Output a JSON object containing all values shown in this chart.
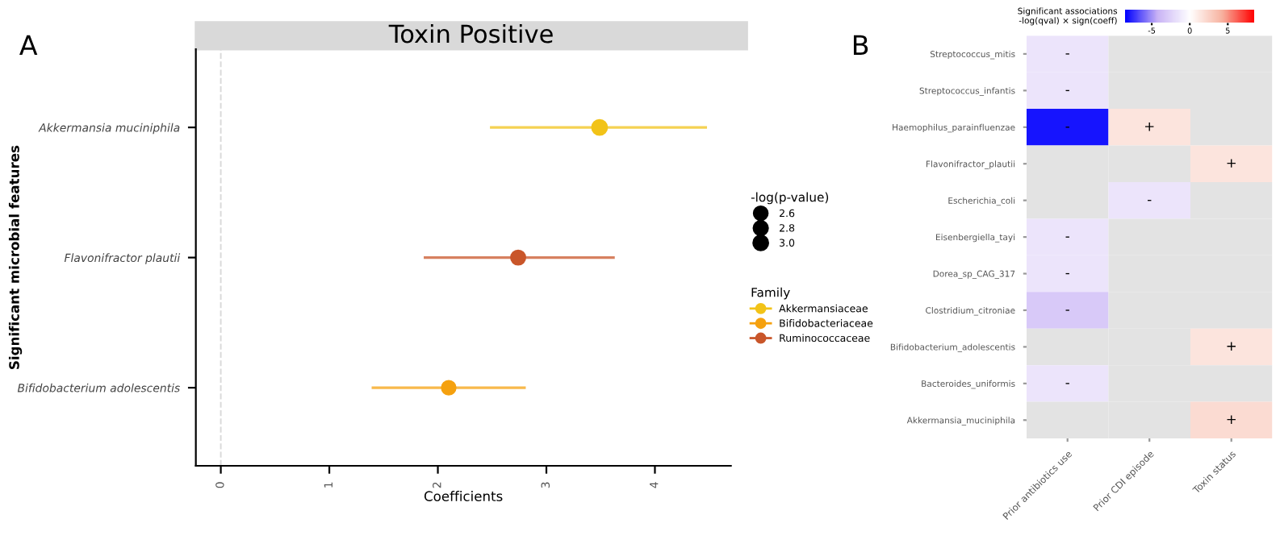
{
  "chart_data": [
    {
      "type": "scatter",
      "orientation": "horizontal",
      "title": "Toxin Positive",
      "xlabel": "Coefficients",
      "ylabel": "Significant microbial features",
      "annotations": [
        "A"
      ],
      "categories": [
        "Akkermansia muciniphila",
        "Flavonifractor plautii",
        "Bifidobacterium adolescentis"
      ],
      "xlim": [
        -0.23,
        4.7
      ],
      "xticks": [
        0,
        1,
        2,
        3,
        4
      ],
      "marker": "circle",
      "grid": false,
      "legend": "right",
      "legend_title": [
        "-log(p-value)",
        "Family"
      ],
      "size_legend": [
        {
          "value": 2.6,
          "label": "2.6"
        },
        {
          "value": 2.8,
          "label": "2.8"
        },
        {
          "value": 3.0,
          "label": "3.0"
        }
      ],
      "ref_lines": [
        {
          "axis": "x",
          "value": 0,
          "color": "#d9d9d9",
          "line_style": "dashed"
        }
      ],
      "series": [
        {
          "name": "Akkermansiaceae",
          "color": "#f2c318",
          "values": [
            3.49,
            null,
            null
          ],
          "errors": [
            [
              2.48,
              4.48
            ],
            null,
            null
          ],
          "sizes": [
            3.05,
            null,
            null
          ]
        },
        {
          "name": "Bifidobacteriaceae",
          "color": "#f5a10f",
          "values": [
            null,
            null,
            2.1
          ],
          "errors": [
            null,
            null,
            [
              1.39,
              2.81
            ]
          ],
          "sizes": [
            null,
            null,
            2.55
          ]
        },
        {
          "name": "Ruminococcaceae",
          "color": "#c9562a",
          "values": [
            null,
            2.74,
            null
          ],
          "errors": [
            null,
            [
              1.87,
              3.63
            ],
            null
          ],
          "sizes": [
            null,
            2.72,
            null
          ]
        }
      ]
    },
    {
      "type": "heatmap",
      "annotations": [
        "B"
      ],
      "clabel": "Significant associations\n-log(qval) × sign(coeff)",
      "clim": [
        -8.5,
        8.5
      ],
      "cticks": [
        -5,
        0,
        5
      ],
      "grid": false,
      "categories": [
        "Prior antibiotics use",
        "Prior CDI episode",
        "Toxin status"
      ],
      "y_categories": [
        "Streptococcus_mitis",
        "Streptococcus_infantis",
        "Haemophilus_parainfluenzae",
        "Flavonifractor_plautii",
        "Escherichia_coli",
        "Eisenbergiella_tayi",
        "Dorea_sp_CAG_317",
        "Clostridium_citroniae",
        "Bifidobacterium_adolescentis",
        "Bacteroides_uniformis",
        "Akkermansia_muciniphila"
      ],
      "cells": [
        [
          -1.5,
          null,
          null
        ],
        [
          -1.5,
          null,
          null
        ],
        [
          -8,
          1.5,
          null
        ],
        [
          null,
          null,
          1.5
        ],
        [
          null,
          -1.5,
          null
        ],
        [
          -1.5,
          null,
          null
        ],
        [
          -1.5,
          null,
          null
        ],
        [
          -3,
          null,
          null
        ],
        [
          null,
          null,
          1.5
        ],
        [
          -1.5,
          null,
          null
        ],
        [
          null,
          null,
          2
        ]
      ],
      "cell_labels": [
        [
          "-",
          null,
          null
        ],
        [
          "-",
          null,
          null
        ],
        [
          "-",
          "+",
          null
        ],
        [
          null,
          null,
          "+"
        ],
        [
          null,
          "-",
          null
        ],
        [
          "-",
          null,
          null
        ],
        [
          "-",
          null,
          null
        ],
        [
          "-",
          null,
          null
        ],
        [
          null,
          null,
          "+"
        ],
        [
          "-",
          null,
          null
        ],
        [
          null,
          null,
          "+"
        ]
      ]
    }
  ]
}
